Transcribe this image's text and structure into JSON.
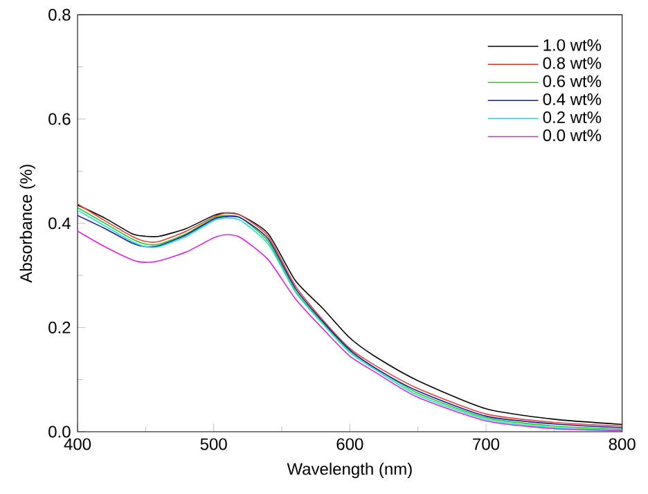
{
  "chart_data": {
    "type": "line",
    "xlabel": "Wavelength (nm)",
    "ylabel": "Absorbance (%)",
    "x": [
      400,
      420,
      440,
      450,
      460,
      480,
      500,
      510,
      520,
      540,
      560,
      580,
      600,
      620,
      650,
      700,
      750,
      800
    ],
    "series": [
      {
        "name": "1.0 wt%",
        "color": "#000000",
        "values": [
          0.435,
          0.41,
          0.38,
          0.375,
          0.375,
          0.39,
          0.415,
          0.42,
          0.415,
          0.38,
          0.29,
          0.237,
          0.18,
          0.142,
          0.098,
          0.044,
          0.024,
          0.014
        ]
      },
      {
        "name": "0.8 wt%",
        "color": "#e8403c",
        "values": [
          0.437,
          0.405,
          0.375,
          0.365,
          0.365,
          0.385,
          0.412,
          0.42,
          0.415,
          0.375,
          0.28,
          0.215,
          0.16,
          0.125,
          0.083,
          0.034,
          0.018,
          0.011
        ]
      },
      {
        "name": "0.6 wt%",
        "color": "#22cc22",
        "values": [
          0.43,
          0.4,
          0.37,
          0.36,
          0.36,
          0.38,
          0.41,
          0.415,
          0.41,
          0.365,
          0.27,
          0.21,
          0.155,
          0.12,
          0.074,
          0.027,
          0.011,
          0.005
        ]
      },
      {
        "name": "0.4 wt%",
        "color": "#1a1a99",
        "values": [
          0.415,
          0.39,
          0.362,
          0.355,
          0.357,
          0.378,
          0.408,
          0.413,
          0.41,
          0.37,
          0.275,
          0.212,
          0.157,
          0.12,
          0.078,
          0.03,
          0.015,
          0.008
        ]
      },
      {
        "name": "0.2 wt%",
        "color": "#22dddd",
        "values": [
          0.425,
          0.395,
          0.365,
          0.355,
          0.355,
          0.375,
          0.405,
          0.41,
          0.405,
          0.36,
          0.268,
          0.207,
          0.152,
          0.117,
          0.07,
          0.024,
          0.008,
          0.003
        ]
      },
      {
        "name": "0.0 wt%",
        "color": "#dd22dd",
        "values": [
          0.385,
          0.355,
          0.33,
          0.325,
          0.328,
          0.345,
          0.372,
          0.378,
          0.372,
          0.33,
          0.255,
          0.198,
          0.145,
          0.112,
          0.066,
          0.021,
          0.006,
          0.002
        ]
      }
    ],
    "xlim": [
      400,
      800
    ],
    "ylim": [
      0,
      0.8
    ],
    "xticks": [
      400,
      500,
      600,
      700,
      800
    ],
    "yticks": [
      {
        "value": 0,
        "label": "0.0"
      },
      {
        "value": 0.2,
        "label": "0.2"
      },
      {
        "value": 0.4,
        "label": "0.4"
      },
      {
        "value": 0.6,
        "label": "0.6"
      },
      {
        "value": 0.8,
        "label": "0.8"
      }
    ],
    "legend": "top right",
    "grid": false,
    "marker": "none",
    "line_style": "solid"
  }
}
